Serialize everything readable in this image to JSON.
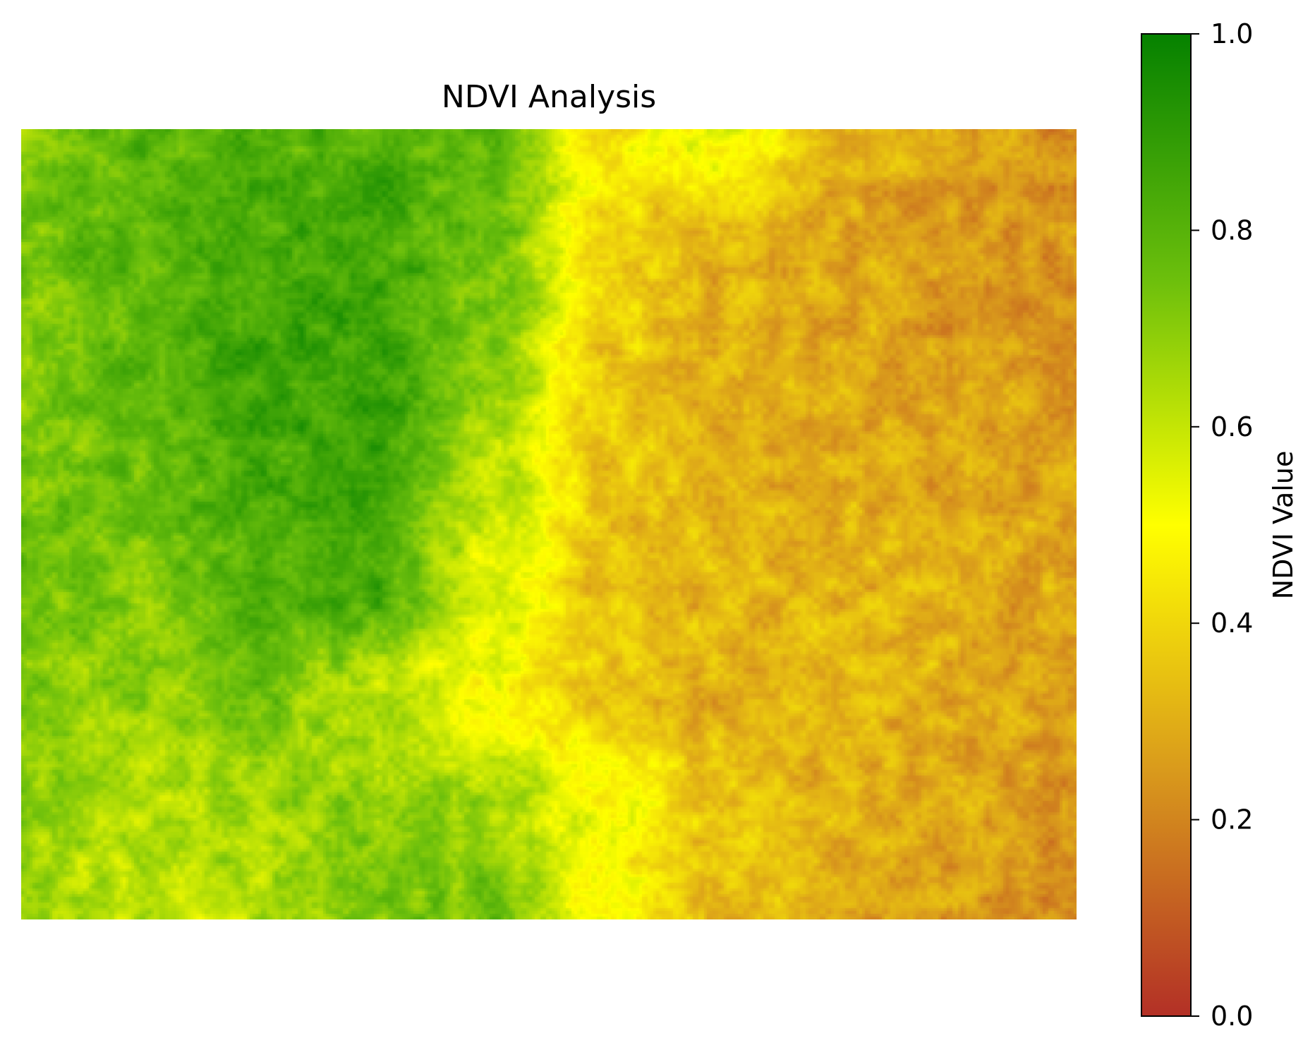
{
  "chart_data": {
    "type": "heatmap",
    "title": "NDVI Analysis",
    "axes_visible": false,
    "grid": false,
    "colormap": {
      "name": "red-yellow-green",
      "stops": [
        {
          "value": 0.0,
          "color": "#b33026"
        },
        {
          "value": 0.25,
          "color": "#d99a1c"
        },
        {
          "value": 0.5,
          "color": "#ffff00"
        },
        {
          "value": 0.75,
          "color": "#6cbf0c"
        },
        {
          "value": 1.0,
          "color": "#058100"
        }
      ]
    },
    "value_range": [
      0.0,
      1.0
    ],
    "colorbar": {
      "label": "NDVI Value",
      "placement": "right",
      "ticks": [
        {
          "value": 0.0,
          "label": "0.0"
        },
        {
          "value": 0.2,
          "label": "0.2"
        },
        {
          "value": 0.4,
          "label": "0.4"
        },
        {
          "value": 0.6,
          "label": "0.6"
        },
        {
          "value": 0.8,
          "label": "0.8"
        },
        {
          "value": 1.0,
          "label": "1.0"
        }
      ]
    },
    "field_summary": {
      "rows": 8,
      "cols": 10,
      "values": [
        [
          0.72,
          0.78,
          0.8,
          0.82,
          0.78,
          0.45,
          0.55,
          0.3,
          0.28,
          0.22
        ],
        [
          0.74,
          0.8,
          0.84,
          0.85,
          0.76,
          0.4,
          0.32,
          0.28,
          0.25,
          0.22
        ],
        [
          0.7,
          0.78,
          0.86,
          0.86,
          0.7,
          0.38,
          0.3,
          0.28,
          0.26,
          0.24
        ],
        [
          0.72,
          0.76,
          0.84,
          0.86,
          0.62,
          0.36,
          0.3,
          0.3,
          0.28,
          0.27
        ],
        [
          0.74,
          0.72,
          0.8,
          0.84,
          0.55,
          0.34,
          0.32,
          0.32,
          0.3,
          0.28
        ],
        [
          0.72,
          0.68,
          0.74,
          0.62,
          0.5,
          0.36,
          0.3,
          0.32,
          0.3,
          0.27
        ],
        [
          0.68,
          0.62,
          0.66,
          0.7,
          0.66,
          0.5,
          0.36,
          0.3,
          0.28,
          0.24
        ],
        [
          0.66,
          0.6,
          0.62,
          0.72,
          0.74,
          0.46,
          0.34,
          0.3,
          0.26,
          0.22
        ]
      ]
    }
  }
}
